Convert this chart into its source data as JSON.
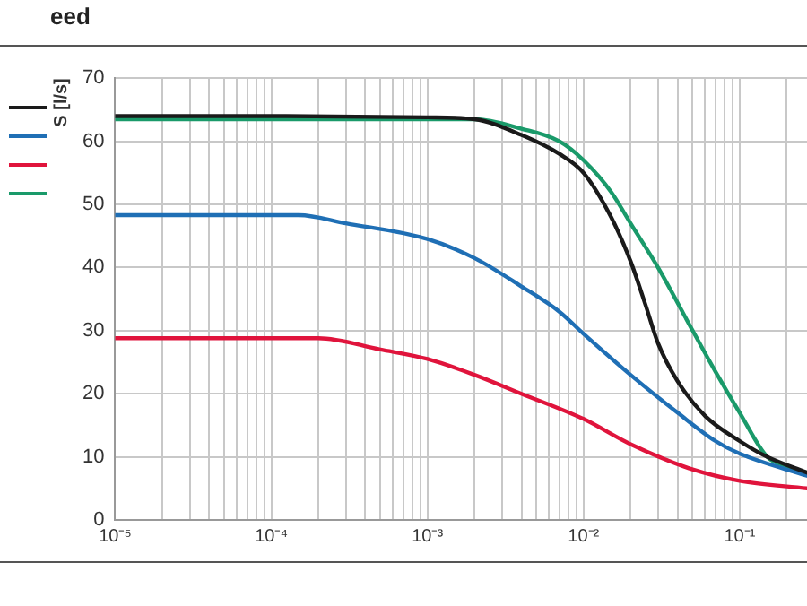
{
  "chart_data": {
    "type": "line",
    "title": "eed",
    "ylabel": "S [l/s]",
    "log": "x",
    "grid": true,
    "marker": "none",
    "line_style": "solid",
    "xlim": [
      1e-05,
      0.27
    ],
    "xticks": [
      {
        "value": 1e-05,
        "label": "10⁻⁵"
      },
      {
        "value": 2e-05,
        "label": null
      },
      {
        "value": 3e-05,
        "label": null
      },
      {
        "value": 4e-05,
        "label": null
      },
      {
        "value": 5e-05,
        "label": null
      },
      {
        "value": 6e-05,
        "label": null
      },
      {
        "value": 7e-05,
        "label": null
      },
      {
        "value": 8e-05,
        "label": null
      },
      {
        "value": 9e-05,
        "label": null
      },
      {
        "value": 0.0001,
        "label": "10⁻⁴"
      },
      {
        "value": 0.0002,
        "label": null
      },
      {
        "value": 0.0003,
        "label": null
      },
      {
        "value": 0.0004,
        "label": null
      },
      {
        "value": 0.0005,
        "label": null
      },
      {
        "value": 0.0006,
        "label": null
      },
      {
        "value": 0.0007,
        "label": null
      },
      {
        "value": 0.0008,
        "label": null
      },
      {
        "value": 0.0009,
        "label": null
      },
      {
        "value": 0.001,
        "label": "10⁻³"
      },
      {
        "value": 0.002,
        "label": null
      },
      {
        "value": 0.003,
        "label": null
      },
      {
        "value": 0.004,
        "label": null
      },
      {
        "value": 0.005,
        "label": null
      },
      {
        "value": 0.006,
        "label": null
      },
      {
        "value": 0.007,
        "label": null
      },
      {
        "value": 0.008,
        "label": null
      },
      {
        "value": 0.009,
        "label": null
      },
      {
        "value": 0.01,
        "label": "10⁻²"
      },
      {
        "value": 0.02,
        "label": null
      },
      {
        "value": 0.03,
        "label": null
      },
      {
        "value": 0.04,
        "label": null
      },
      {
        "value": 0.05,
        "label": null
      },
      {
        "value": 0.06,
        "label": null
      },
      {
        "value": 0.07,
        "label": null
      },
      {
        "value": 0.08,
        "label": null
      },
      {
        "value": 0.09,
        "label": null
      },
      {
        "value": 0.1,
        "label": "10⁻¹"
      },
      {
        "value": 0.2,
        "label": null
      }
    ],
    "ylim": [
      0,
      70
    ],
    "yticks": [
      0,
      10,
      20,
      30,
      40,
      50,
      60,
      70
    ],
    "series": [
      {
        "color": "#1a1a1a",
        "x": [
          1e-05,
          0.0001,
          0.001,
          0.002,
          0.004,
          0.007,
          0.01,
          0.015,
          0.02,
          0.025,
          0.03,
          0.04,
          0.06,
          0.1,
          0.15,
          0.27
        ],
        "values": [
          64,
          64,
          63.8,
          63.5,
          61,
          58,
          55,
          48,
          41,
          34,
          28,
          22,
          16.5,
          12.5,
          10,
          7.5
        ]
      },
      {
        "color": "#1f6fb5",
        "x": [
          1e-05,
          0.00015,
          0.0003,
          0.001,
          0.002,
          0.004,
          0.007,
          0.01,
          0.02,
          0.04,
          0.07,
          0.1,
          0.27
        ],
        "values": [
          48.3,
          48.3,
          47,
          44.5,
          41.5,
          37,
          33,
          29.5,
          23,
          17,
          12.5,
          10.5,
          7
        ]
      },
      {
        "color": "#e0143c",
        "x": [
          1e-05,
          0.0002,
          0.0005,
          0.001,
          0.002,
          0.004,
          0.01,
          0.02,
          0.05,
          0.1,
          0.27
        ],
        "values": [
          28.8,
          28.8,
          27,
          25.5,
          23,
          20,
          16,
          12,
          8,
          6.2,
          5
        ]
      },
      {
        "color": "#1a9a6a",
        "x": [
          1e-05,
          0.001,
          0.002,
          0.004,
          0.007,
          0.01,
          0.015,
          0.02,
          0.03,
          0.05,
          0.07,
          0.1,
          0.15,
          0.2,
          0.27
        ],
        "values": [
          63.5,
          63.5,
          63.5,
          62,
          60,
          57,
          52,
          47,
          40,
          30,
          23.5,
          17,
          10,
          8.5,
          7.5
        ]
      }
    ]
  }
}
